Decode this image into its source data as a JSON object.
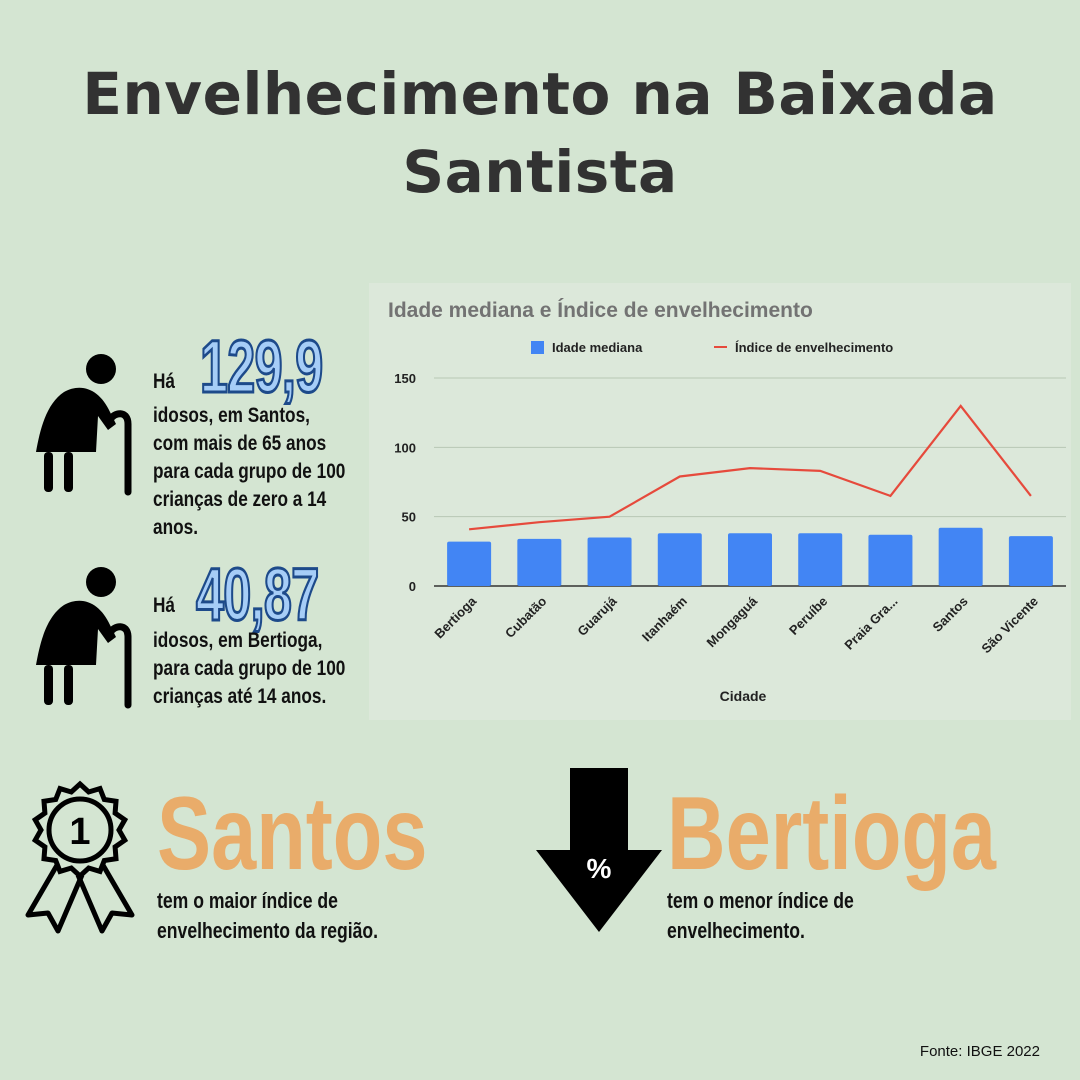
{
  "title": {
    "line1": "Envelhecimento na Baixada",
    "line2": "Santista"
  },
  "stats": [
    {
      "prefix": "Há",
      "value": "129,9",
      "description": "idosos, em Santos,\ncom mais de 65 anos\npara cada grupo de 100\ncrianças de zero a 14\nanos."
    },
    {
      "prefix": "Há",
      "value": "40,87",
      "description": "idosos, em Bertioga,\npara cada grupo de 100\ncrianças até 14 anos."
    }
  ],
  "chart_data": {
    "type": "bar",
    "title": "Idade mediana e Índice de envelhecimento",
    "xlabel": "Cidade",
    "ylabel": "",
    "ylim": [
      0,
      150
    ],
    "yticks": [
      0,
      50,
      100,
      150
    ],
    "grid": true,
    "legend": "top",
    "categories": [
      "Bertioga",
      "Cubatão",
      "Guarujá",
      "Itanhaém",
      "Mongaguá",
      "Peruíbe",
      "Praia Gra...",
      "Santos",
      "São Vicente"
    ],
    "series": [
      {
        "name": "Idade mediana",
        "kind": "bar",
        "color": "#4285f4",
        "values": [
          32,
          34,
          35,
          38,
          38,
          38,
          37,
          42,
          36
        ]
      },
      {
        "name": "Índice de envelhecimento",
        "kind": "line",
        "color": "#e64a3c",
        "values": [
          40.87,
          46,
          50,
          79,
          85,
          83,
          65,
          129.9,
          65
        ]
      }
    ]
  },
  "highlights": [
    {
      "word": "Santos",
      "description": "tem o maior índice de\nenvelhecimento da região."
    },
    {
      "word": "Bertioga",
      "description": "tem o menor índice de\nenvelhecimento."
    }
  ],
  "badge_icon": "first-place-medal-icon",
  "badge_number": "1",
  "arrow_icon": "down-arrow-icon",
  "arrow_symbol": "%",
  "elder_icon": "elderly-person-with-cane-icon",
  "source": "Fonte: IBGE 2022"
}
